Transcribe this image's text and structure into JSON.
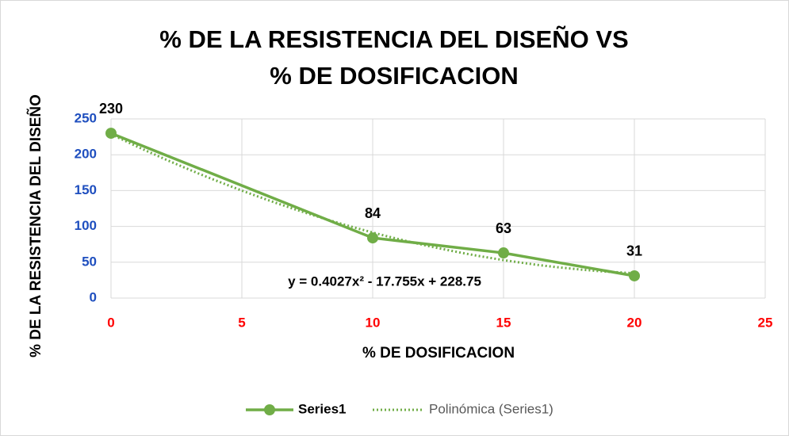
{
  "chart_data": {
    "type": "line",
    "title": [
      "% DE LA RESISTENCIA DEL DISEÑO VS",
      "% DE DOSIFICACION"
    ],
    "x_label": "% DE DOSIFICACION",
    "y_label": "% DE LA RESISTENCIA DEL DISEÑO",
    "x": [
      0,
      10,
      15,
      20
    ],
    "series": [
      {
        "name": "Series1",
        "color": "#70ad47",
        "values": [
          230,
          84,
          63,
          31
        ]
      }
    ],
    "trendline": {
      "name": "Polinómica (Series1)",
      "color": "#70ad47",
      "equation": "y = 0.4027x² - 17.755x + 228.75",
      "coefficients": [
        0.4027,
        -17.755,
        228.75
      ]
    },
    "xlim": [
      0,
      25
    ],
    "xticks": [
      0,
      5,
      10,
      15,
      20,
      25
    ],
    "ylim": [
      0,
      250
    ],
    "yticks": [
      0,
      50,
      100,
      150,
      200,
      250
    ],
    "grid": true,
    "legend": "bottom",
    "xtick_color": "#ff0000",
    "ytick_color": "#1f4fbf"
  }
}
